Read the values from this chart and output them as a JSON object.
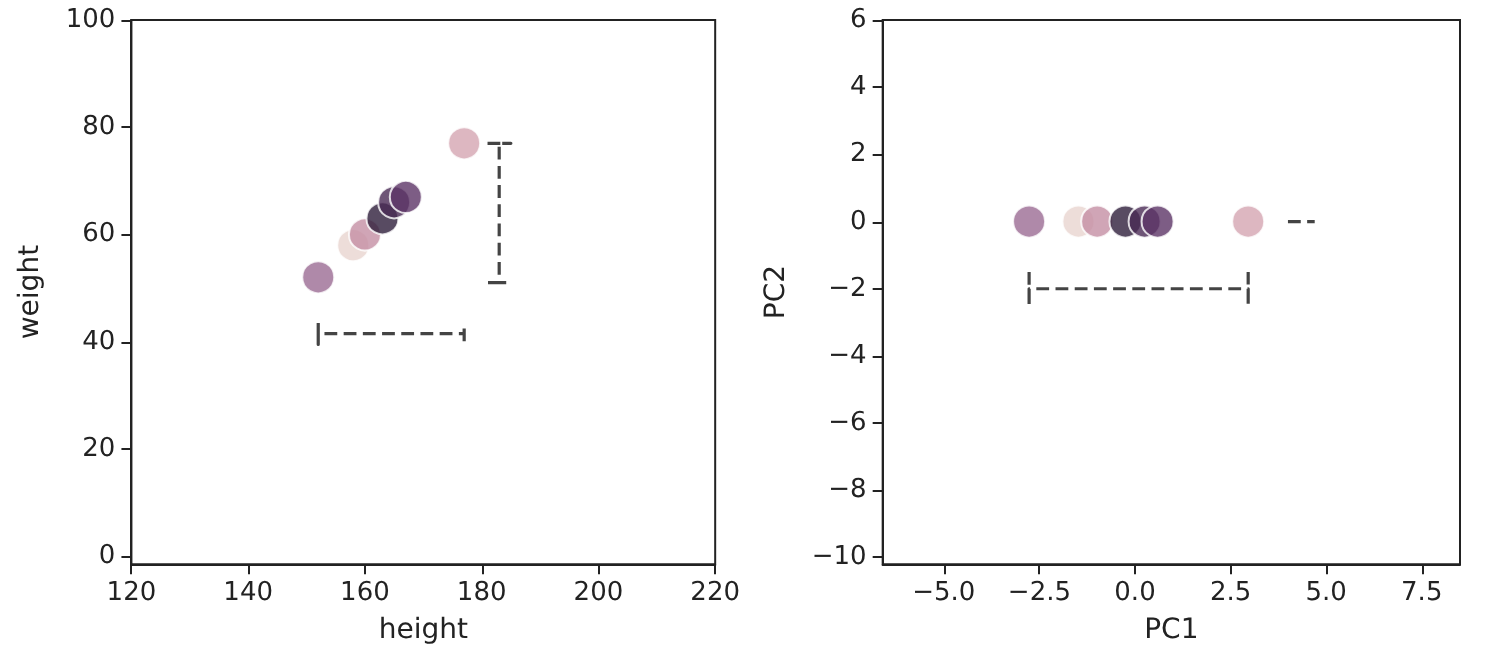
{
  "chart_data": [
    {
      "type": "scatter",
      "xlabel": "height",
      "ylabel": "weight",
      "xlim": [
        120,
        220
      ],
      "ylim": [
        -1.5,
        100
      ],
      "xticks": [
        120,
        140,
        160,
        180,
        200,
        220
      ],
      "yticks": [
        0,
        20,
        40,
        60,
        80,
        100
      ],
      "grid": false,
      "marker": "circle",
      "series": [
        {
          "x": [
            152,
            158,
            160,
            163,
            165,
            167,
            177
          ],
          "values": [
            52,
            58,
            60,
            63,
            66,
            67,
            77
          ],
          "colors": [
            "#9b6b93",
            "#e8d4d0",
            "#c48fa4",
            "#2e1e3b",
            "#4a2a55",
            "#5c3566",
            "#d4a5b1"
          ]
        },
        {
          "type": "line",
          "color": "#444444",
          "line_style": "dashed",
          "marker": "none",
          "x": [
            152,
            152,
            152,
            177,
            177,
            177
          ],
          "values": [
            43.5,
            39.5,
            41.5,
            41.5,
            39.5,
            43.5
          ]
        },
        {
          "type": "line",
          "color": "#444444",
          "line_style": "dashed",
          "marker": "none",
          "x": [
            181,
            185,
            183,
            183,
            181,
            185
          ],
          "values": [
            77,
            77,
            77,
            51,
            51,
            51
          ]
        }
      ]
    },
    {
      "type": "scatter",
      "xlabel": "PC1",
      "ylabel": "PC2",
      "xlim": [
        -6.6,
        8.5
      ],
      "ylim": [
        -10.2,
        6
      ],
      "xticks": [
        {
          "value": -5,
          "label": "−5.0"
        },
        {
          "value": -2.5,
          "label": "−2.5"
        },
        {
          "value": 0,
          "label": "0.0"
        },
        {
          "value": 2.5,
          "label": "2.5"
        },
        {
          "value": 5,
          "label": "5.0"
        },
        {
          "value": 7.5,
          "label": "7.5"
        }
      ],
      "yticks": [
        {
          "value": -10,
          "label": "−10"
        },
        {
          "value": -8,
          "label": "−8"
        },
        {
          "value": -6,
          "label": "−6"
        },
        {
          "value": -4,
          "label": "−4"
        },
        {
          "value": -2,
          "label": "−2"
        },
        0,
        2,
        4,
        6
      ],
      "grid": false,
      "marker": "circle",
      "series": [
        {
          "x": [
            -2.77,
            -1.48,
            -0.99,
            -0.25,
            0.25,
            0.59,
            2.96
          ],
          "values": [
            0,
            0,
            0,
            0,
            0,
            0,
            0
          ],
          "colors": [
            "#9b6b93",
            "#e8d4d0",
            "#c48fa4",
            "#2e1e3b",
            "#4a2a55",
            "#5c3566",
            "#d4a5b1"
          ]
        },
        {
          "type": "line",
          "color": "#444444",
          "line_style": "dashed",
          "marker": "none",
          "x": [
            -2.77,
            -2.77,
            -2.77,
            2.96,
            2.96,
            2.96
          ],
          "values": [
            -1.5,
            -2.5,
            -2,
            -2,
            -2.5,
            -1.5
          ]
        },
        {
          "type": "line",
          "color": "#444444",
          "line_style": "dashed",
          "marker": "none",
          "x": [
            4,
            4.7
          ],
          "values": [
            0,
            0
          ]
        }
      ]
    }
  ]
}
